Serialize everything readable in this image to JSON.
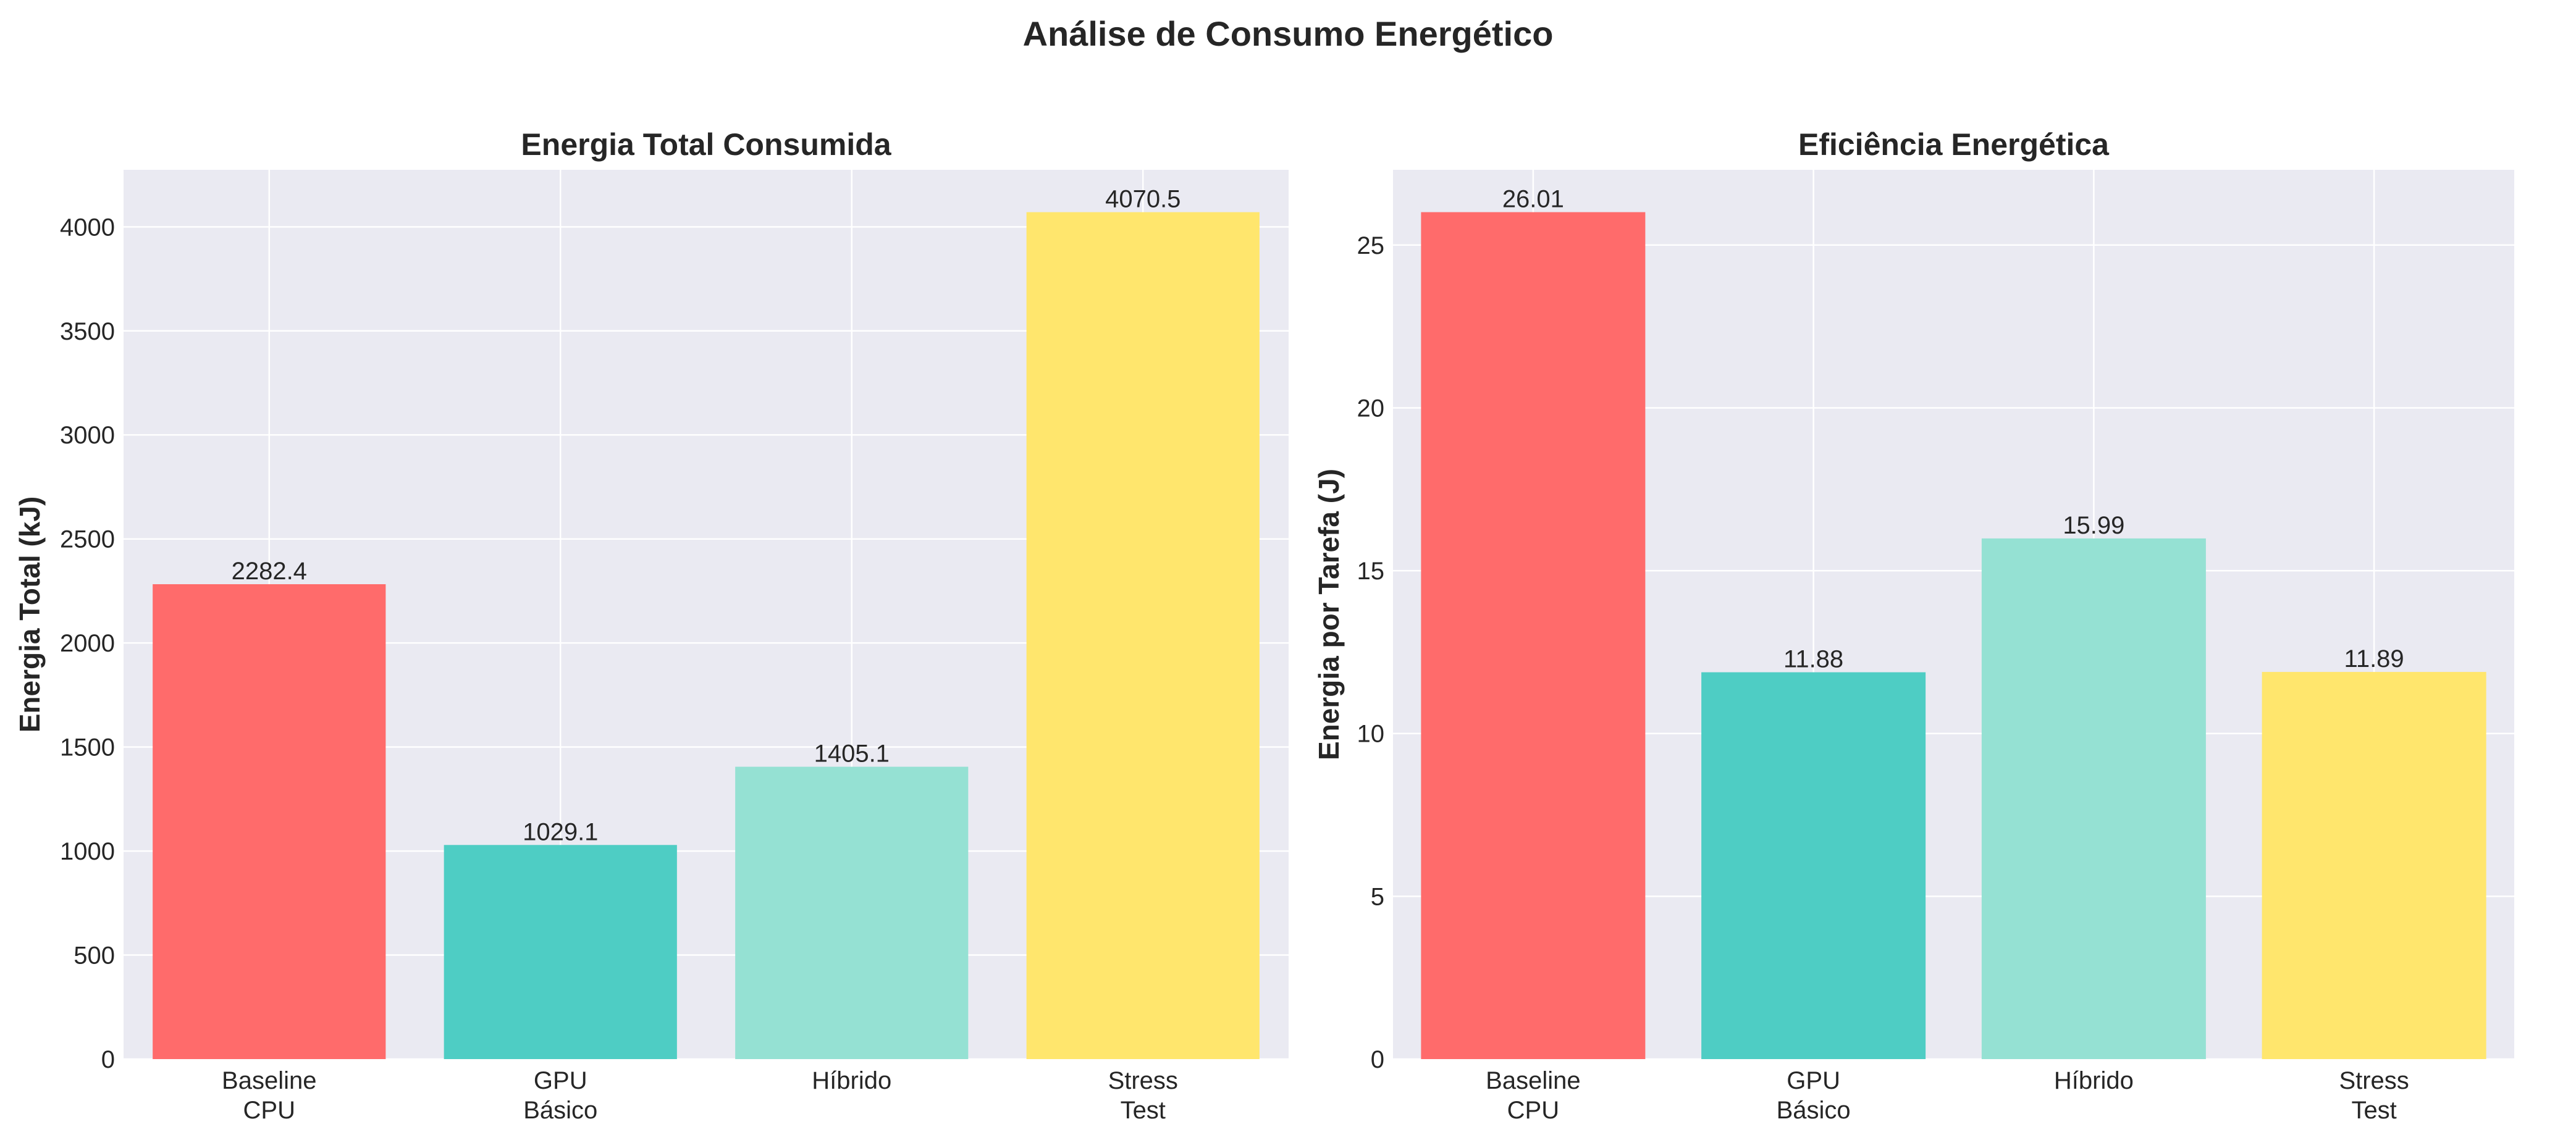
{
  "figure": {
    "title": "Análise de Consumo Energético",
    "background": "#ffffff",
    "axes_background": "#eaeaf2",
    "grid_color": "#ffffff"
  },
  "chart_data": [
    {
      "type": "bar",
      "title": "Energia Total Consumida",
      "xlabel": "",
      "ylabel": "Energia Total (kJ)",
      "categories": [
        [
          "Baseline",
          "CPU"
        ],
        [
          "GPU",
          "Básico"
        ],
        [
          "Híbrido"
        ],
        [
          "Stress",
          "Test"
        ]
      ],
      "values": [
        2282.4,
        1029.1,
        1405.1,
        4070.5
      ],
      "value_labels": [
        "2282.4",
        "1029.1",
        "1405.1",
        "4070.5"
      ],
      "colors": [
        "#ff6b6b",
        "#4ecdc4",
        "#95e1d3",
        "#ffe66d"
      ],
      "ylim": [
        0,
        4274.0
      ],
      "yticks": [
        0,
        500,
        1000,
        1500,
        2000,
        2500,
        3000,
        3500,
        4000
      ],
      "grid": true,
      "legend": "none"
    },
    {
      "type": "bar",
      "title": "Eficiência Energética",
      "xlabel": "",
      "ylabel": "Energia por Tarefa (J)",
      "categories": [
        [
          "Baseline",
          "CPU"
        ],
        [
          "GPU",
          "Básico"
        ],
        [
          "Híbrido"
        ],
        [
          "Stress",
          "Test"
        ]
      ],
      "values": [
        26.01,
        11.88,
        15.99,
        11.89
      ],
      "value_labels": [
        "26.01",
        "11.88",
        "15.99",
        "11.89"
      ],
      "colors": [
        "#ff6b6b",
        "#4ecdc4",
        "#95e1d3",
        "#ffe66d"
      ],
      "ylim": [
        0,
        27.31
      ],
      "yticks": [
        0,
        5,
        10,
        15,
        20,
        25
      ],
      "grid": true,
      "legend": "none"
    }
  ]
}
